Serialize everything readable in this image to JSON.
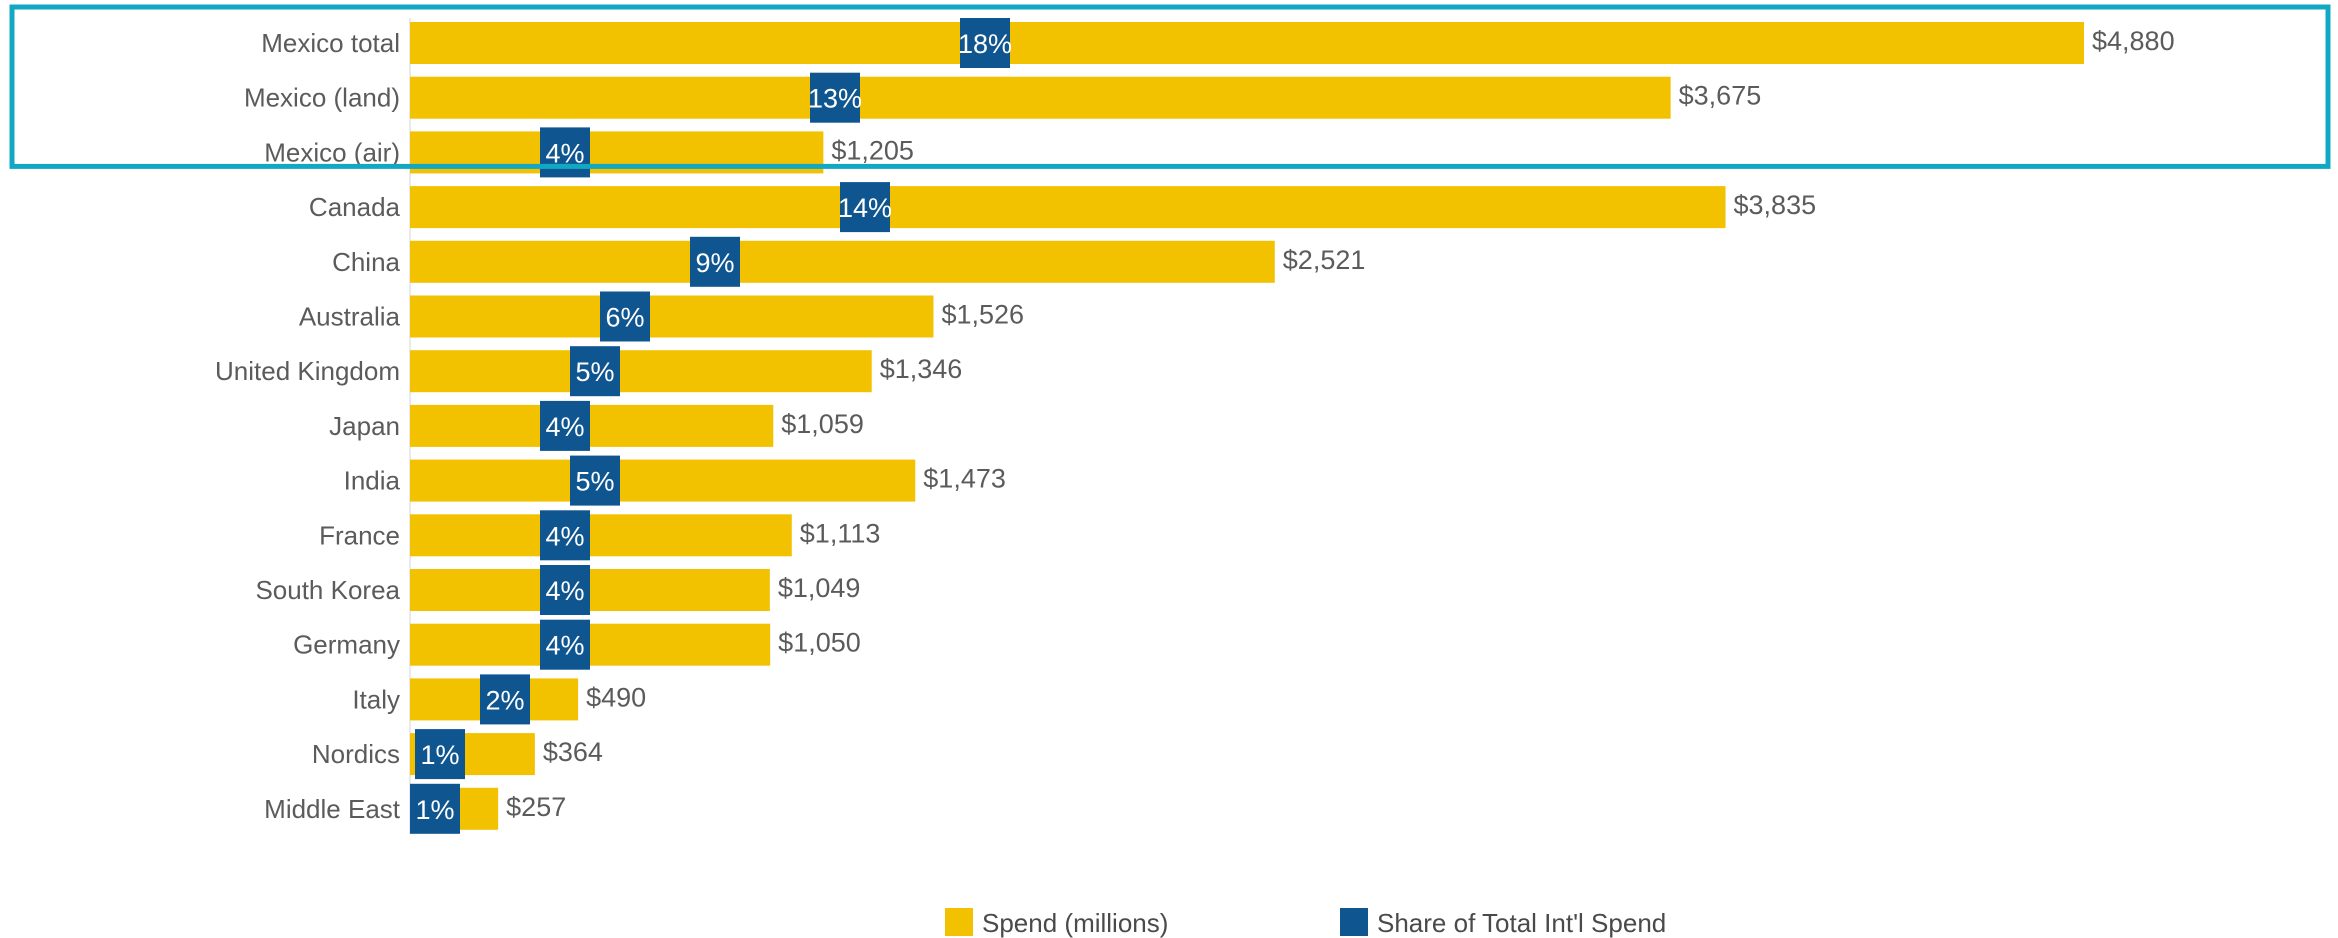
{
  "colors": {
    "spend": "#f2c200",
    "share": "#0f5590",
    "highlight": "#12a8c4",
    "text": "#5b5b5b"
  },
  "legend": {
    "spend_label": "Spend (millions)",
    "share_label": "Share of Total Int'l Spend"
  },
  "chart_data": {
    "type": "bar",
    "orientation": "horizontal",
    "title": "",
    "xlabel": "",
    "ylabel": "",
    "xlim": [
      0,
      4880
    ],
    "grid": false,
    "legend_position": "bottom",
    "categories": [
      "Mexico total",
      "Mexico (land)",
      "Mexico (air)",
      "Canada",
      "China",
      "Australia",
      "United Kingdom",
      "Japan",
      "India",
      "France",
      "South Korea",
      "Germany",
      "Italy",
      "Nordics",
      "Middle East"
    ],
    "series": [
      {
        "name": "Spend (millions)",
        "values": [
          4880,
          3675,
          1205,
          3835,
          2521,
          1526,
          1346,
          1059,
          1473,
          1113,
          1049,
          1050,
          490,
          364,
          257
        ],
        "labels": [
          "$4,880",
          "$3,675",
          "$1,205",
          "$3,835",
          "$2,521",
          "$1,526",
          "$1,346",
          "$1,059",
          "$1,473",
          "$1,113",
          "$1,049",
          "$1,050",
          "$490",
          "$364",
          "$257"
        ]
      },
      {
        "name": "Share of Total Int'l Spend",
        "values": [
          18,
          13,
          4,
          14,
          9,
          6,
          5,
          4,
          5,
          4,
          4,
          4,
          2,
          1,
          1
        ],
        "labels": [
          "18%",
          "13%",
          "4%",
          "14%",
          "9%",
          "6%",
          "5%",
          "4%",
          "5%",
          "4%",
          "4%",
          "4%",
          "2%",
          "1%",
          "1%"
        ]
      }
    ],
    "highlighted_categories": [
      "Mexico total",
      "Mexico (land)",
      "Mexico (air)"
    ]
  }
}
